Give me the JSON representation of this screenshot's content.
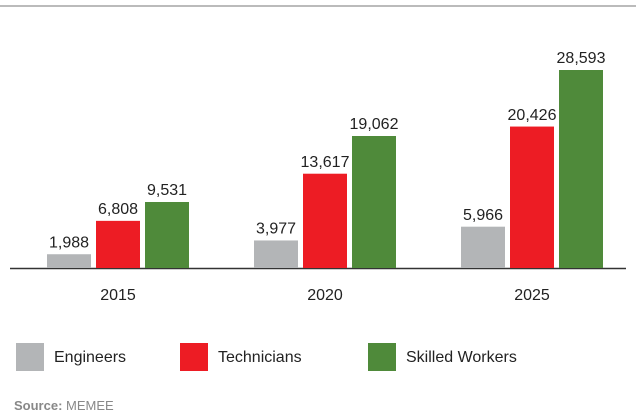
{
  "chart_data": {
    "type": "bar",
    "categories": [
      "2015",
      "2020",
      "2025"
    ],
    "series": [
      {
        "name": "Engineers",
        "color": "#b3b5b7",
        "values": [
          1988,
          3977,
          5966
        ],
        "value_labels": [
          "1,988",
          "3,977",
          "5,966"
        ]
      },
      {
        "name": "Technicians",
        "color": "#ed1c24",
        "values": [
          6808,
          13617,
          20426
        ],
        "value_labels": [
          "6,808",
          "13,617",
          "20,426"
        ]
      },
      {
        "name": "Skilled Workers",
        "color": "#4f8a3a",
        "values": [
          9531,
          19062,
          28593
        ],
        "value_labels": [
          "9,531",
          "19,062",
          "28,593"
        ]
      }
    ],
    "source_label": "Source:",
    "source": "MEMEE"
  }
}
